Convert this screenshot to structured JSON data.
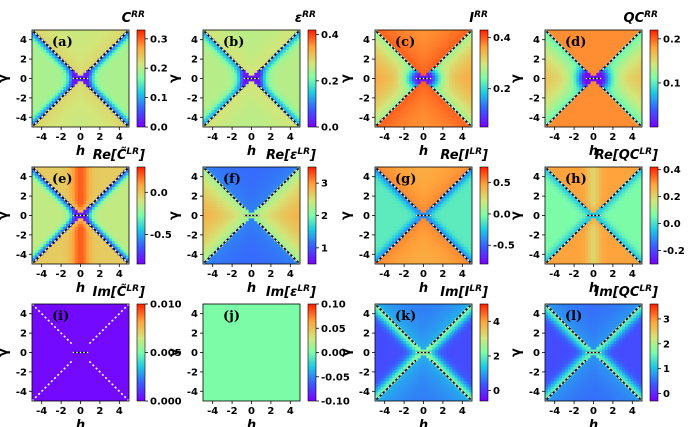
{
  "chart_data": {
    "type": "heatmap",
    "shared": {
      "xlabel": "h",
      "ylabel": "γ",
      "xticks": [
        "-4",
        "-2",
        "0",
        "2",
        "4"
      ],
      "yticks": [
        "4",
        "2",
        "0",
        "-2",
        "-4"
      ],
      "xlim": [
        -5,
        5
      ],
      "ylim": [
        -5,
        5
      ]
    },
    "panels": [
      {
        "label": "(a)",
        "title": "C^RR",
        "cbar_ticks": [
          "0.3",
          "0.2",
          "0.1",
          "0.0"
        ],
        "cbar_values": [
          0.3,
          0.2,
          0.1,
          0.0
        ],
        "vmin": 0.0,
        "vmax": 0.33,
        "pattern": "CRR",
        "boundary": "black-white"
      },
      {
        "label": "(b)",
        "title": "ε^RR",
        "cbar_ticks": [
          "0.4",
          "0.2",
          "0.0"
        ],
        "cbar_values": [
          0.4,
          0.2,
          0.0
        ],
        "vmin": 0.0,
        "vmax": 0.42,
        "pattern": "ERR",
        "boundary": "black-white"
      },
      {
        "label": "(c)",
        "title": "I^RR",
        "cbar_ticks": [
          "0.4",
          "0.2"
        ],
        "cbar_values": [
          0.4,
          0.2
        ],
        "vmin": 0.05,
        "vmax": 0.43,
        "pattern": "IRR",
        "boundary": "black-white"
      },
      {
        "label": "(d)",
        "title": "QC^RR",
        "cbar_ticks": [
          "0.2",
          "0.1"
        ],
        "cbar_values": [
          0.2,
          0.1
        ],
        "vmin": 0.0,
        "vmax": 0.22,
        "pattern": "QRR",
        "boundary": "black-white"
      },
      {
        "label": "(e)",
        "title": "Re[C̃^LR]",
        "cbar_ticks": [
          "0.0",
          "-0.5"
        ],
        "cbar_values": [
          0.0,
          -0.5
        ],
        "vmin": -0.85,
        "vmax": 0.3,
        "pattern": "ReC",
        "boundary": "black-white"
      },
      {
        "label": "(f)",
        "title": "Re[ε^LR]",
        "cbar_ticks": [
          "3",
          "2",
          "1"
        ],
        "cbar_values": [
          3,
          2,
          1
        ],
        "vmin": 0.5,
        "vmax": 3.5,
        "pattern": "ReE",
        "boundary": "black-white"
      },
      {
        "label": "(g)",
        "title": "Re[I^LR]",
        "cbar_ticks": [
          "0.5",
          "0.0",
          "-0.5"
        ],
        "cbar_values": [
          0.5,
          0.0,
          -0.5
        ],
        "vmin": -0.8,
        "vmax": 0.75,
        "pattern": "ReI",
        "boundary": "black-white"
      },
      {
        "label": "(h)",
        "title": "Re[QC^LR]",
        "cbar_ticks": [
          "0.4",
          "0.2",
          "0.0",
          "-0.2"
        ],
        "cbar_values": [
          0.4,
          0.2,
          0.0,
          -0.2
        ],
        "vmin": -0.3,
        "vmax": 0.42,
        "pattern": "ReQ",
        "boundary": "black-white"
      },
      {
        "label": "(i)",
        "title": "Im[C̃^LR]",
        "cbar_ticks": [
          "0.010",
          "0.005",
          "0.000"
        ],
        "cbar_values": [
          0.01,
          0.005,
          0.0
        ],
        "vmin": 0.0,
        "vmax": 0.01,
        "pattern": "ImC",
        "boundary": "white"
      },
      {
        "label": "(j)",
        "title": "Im[ε^LR]",
        "cbar_ticks": [
          "0.10",
          "0.05",
          "0.00",
          "-0.05",
          "-0.10"
        ],
        "cbar_values": [
          0.1,
          0.05,
          0.0,
          -0.05,
          -0.1
        ],
        "vmin": -0.1,
        "vmax": 0.1,
        "pattern": "ImE",
        "boundary": "none"
      },
      {
        "label": "(k)",
        "title": "Im[I^LR]",
        "cbar_ticks": [
          "4",
          "2",
          "0"
        ],
        "cbar_values": [
          4,
          2,
          0
        ],
        "vmin": -0.6,
        "vmax": 5,
        "pattern": "ImI",
        "boundary": "black-white"
      },
      {
        "label": "(l)",
        "title": "Im[QC^LR]",
        "cbar_ticks": [
          "3",
          "2",
          "1",
          "0"
        ],
        "cbar_values": [
          3,
          2,
          1,
          0
        ],
        "vmin": -0.3,
        "vmax": 3.6,
        "pattern": "ImQ",
        "boundary": "black-white"
      }
    ]
  }
}
